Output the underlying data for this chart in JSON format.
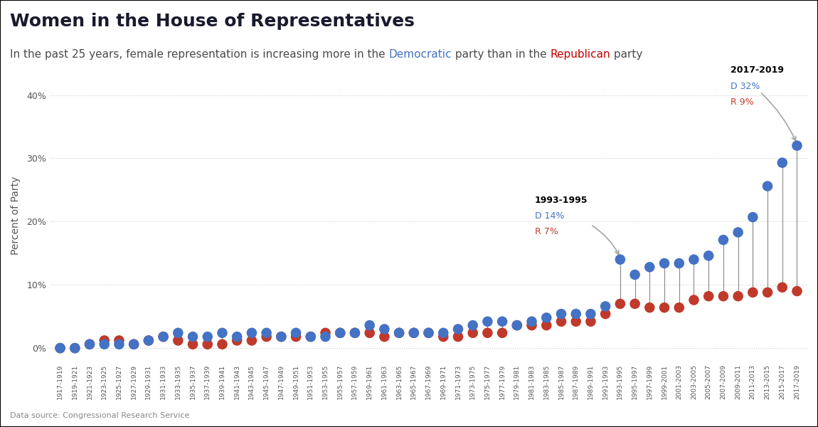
{
  "title": "Women in the House of Representatives",
  "subtitle_parts": [
    {
      "text": "In the past 25 years, female representation is increasing more in the ",
      "color": "#4a4a4a"
    },
    {
      "text": "Democratic",
      "color": "#4472c4"
    },
    {
      "text": " party than in the ",
      "color": "#4a4a4a"
    },
    {
      "text": "Republican",
      "color": "#c00000"
    },
    {
      "text": " party",
      "color": "#4a4a4a"
    }
  ],
  "source": "Data source: Congressional Research Service",
  "ylabel": "Percent of Party",
  "dem_color": "#4472c4",
  "rep_color": "#c0392b",
  "line_color": "#888888",
  "annotation_arrow_color": "#aaaaaa",
  "periods": [
    "1917-1919",
    "1919-1921",
    "1921-1923",
    "1923-1925",
    "1925-1927",
    "1927-1929",
    "1929-1931",
    "1931-1933",
    "1933-1935",
    "1935-1937",
    "1937-1939",
    "1939-1941",
    "1941-1943",
    "1943-1945",
    "1945-1947",
    "1947-1949",
    "1949-1951",
    "1951-1953",
    "1953-1955",
    "1955-1957",
    "1957-1959",
    "1959-1961",
    "1961-1963",
    "1963-1965",
    "1965-1967",
    "1967-1969",
    "1969-1971",
    "1971-1973",
    "1973-1975",
    "1975-1977",
    "1977-1979",
    "1979-1981",
    "1981-1983",
    "1983-1985",
    "1985-1987",
    "1987-1989",
    "1989-1991",
    "1991-1993",
    "1993-1995",
    "1995-1997",
    "1997-1999",
    "1999-2001",
    "2001-2003",
    "2003-2005",
    "2005-2007",
    "2007-2009",
    "2009-2011",
    "2011-2013",
    "2013-2015",
    "2015-2017",
    "2017-2019"
  ],
  "democratic": [
    0.0,
    0.0,
    0.6,
    0.6,
    0.6,
    0.6,
    1.2,
    1.8,
    2.4,
    1.8,
    1.8,
    2.4,
    1.8,
    2.4,
    2.4,
    1.8,
    2.4,
    1.8,
    1.8,
    2.4,
    2.4,
    3.6,
    3.0,
    2.4,
    2.4,
    2.4,
    2.4,
    3.0,
    3.6,
    4.2,
    4.2,
    3.6,
    4.2,
    4.8,
    5.4,
    5.4,
    5.4,
    6.6,
    14.0,
    11.6,
    12.8,
    13.4,
    13.4,
    14.0,
    14.6,
    17.1,
    18.3,
    20.7,
    25.6,
    29.3,
    32.0
  ],
  "republican": [
    0.0,
    0.0,
    0.6,
    1.2,
    1.2,
    0.6,
    1.2,
    1.8,
    1.2,
    0.6,
    0.6,
    0.6,
    1.2,
    1.2,
    1.8,
    1.8,
    1.8,
    1.8,
    2.4,
    2.4,
    2.4,
    2.4,
    1.8,
    2.4,
    2.4,
    2.4,
    1.8,
    1.8,
    2.4,
    2.4,
    2.4,
    3.6,
    3.6,
    3.6,
    4.2,
    4.2,
    4.2,
    5.4,
    7.0,
    7.0,
    6.4,
    6.4,
    6.4,
    7.6,
    8.2,
    8.2,
    8.2,
    8.8,
    8.8,
    9.6,
    9.0
  ],
  "annotation1_period": "1993-1995",
  "annotation1_dem": 14.0,
  "annotation1_rep": 7.0,
  "annotation1_idx": 38,
  "annotation2_period": "2017-2019",
  "annotation2_dem": 32.0,
  "annotation2_rep": 9.0,
  "annotation2_idx": 50,
  "yticks": [
    0,
    10,
    20,
    30,
    40
  ],
  "ytick_labels": [
    "0%",
    "10%",
    "20%",
    "30%",
    "40%"
  ],
  "bg_color": "#ffffff",
  "title_color": "#1a1a2e",
  "title_fontsize": 18,
  "subtitle_fontsize": 11,
  "marker_size": 110
}
